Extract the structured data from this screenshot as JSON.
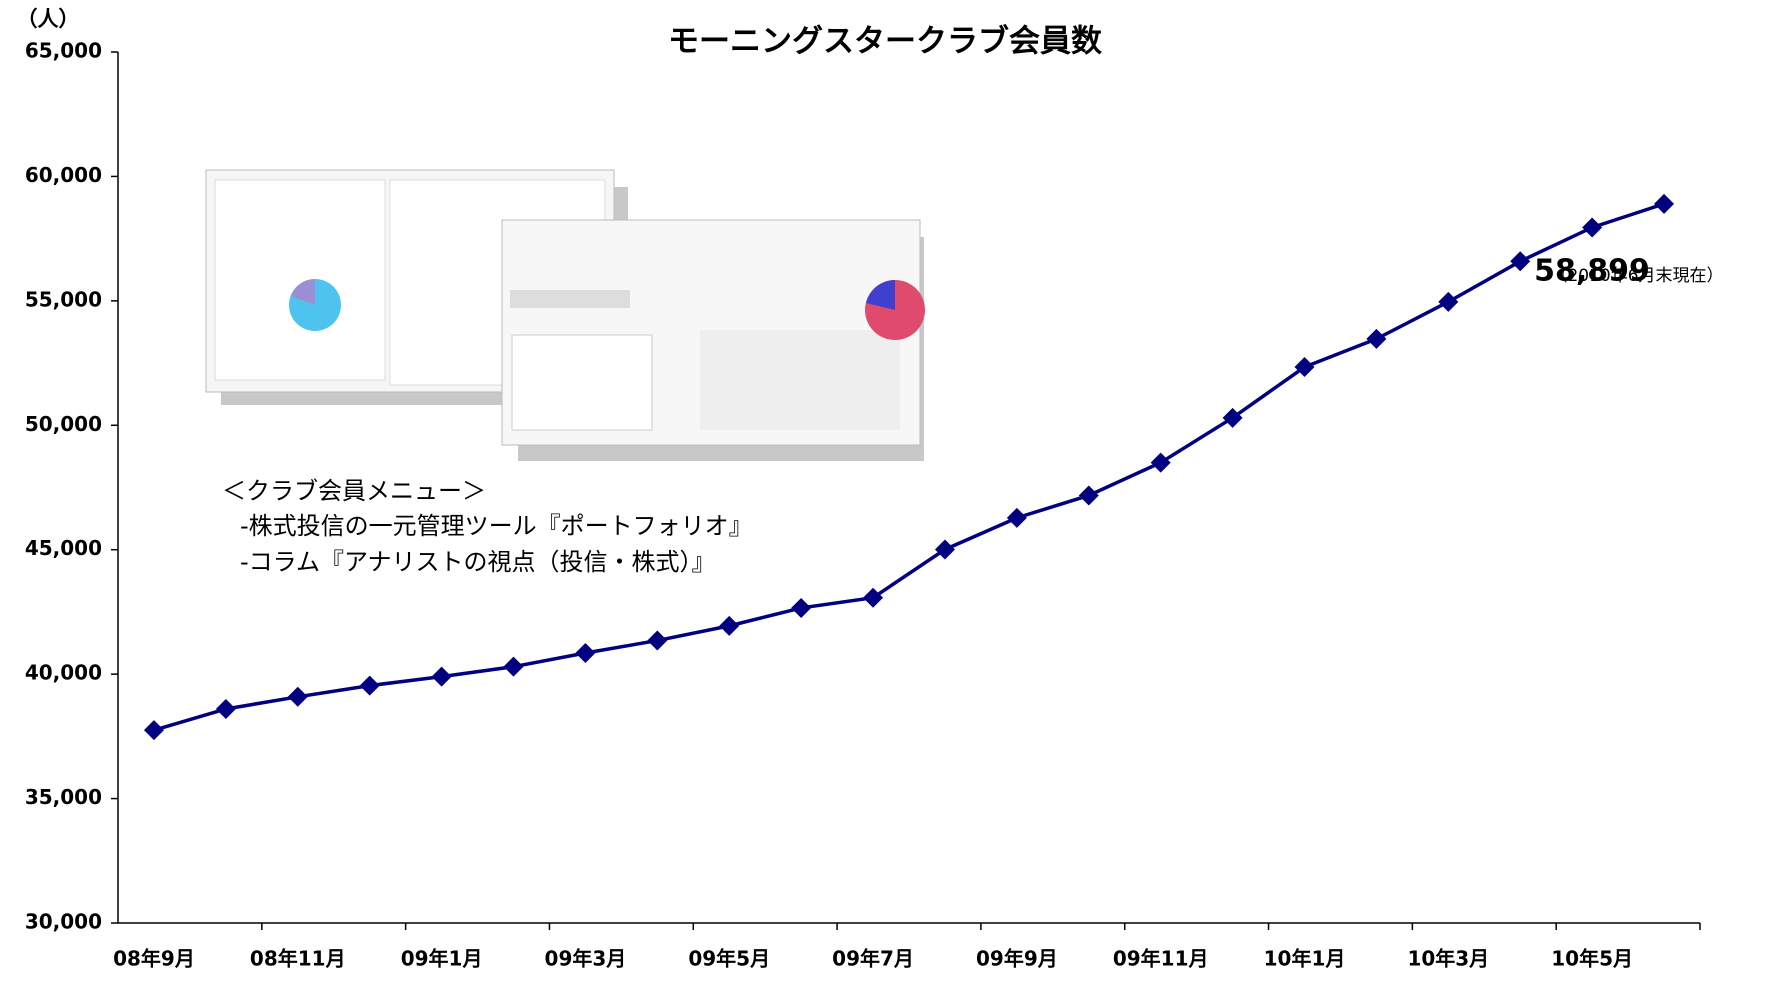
{
  "chart_data": {
    "type": "line",
    "title": "モーニングスタークラブ会員数",
    "y_unit": "（人）",
    "categories": [
      "08年9月",
      null,
      "08年11月",
      null,
      "09年1月",
      null,
      "09年3月",
      null,
      "09年5月",
      null,
      "09年7月",
      null,
      "09年9月",
      null,
      "09年11月",
      null,
      "10年1月",
      null,
      "10年3月",
      null,
      "10年5月",
      null
    ],
    "series": [
      {
        "name": "会員数",
        "color": "#000080",
        "values": [
          37750,
          38600,
          39090,
          39540,
          39900,
          40300,
          40850,
          41350,
          41940,
          42660,
          43070,
          45010,
          46280,
          47180,
          48500,
          50300,
          52340,
          53470,
          54960,
          56590,
          57950,
          58899
        ],
        "value_labels": [
          null,
          null,
          null,
          null,
          null,
          null,
          null,
          null,
          null,
          null,
          null,
          null,
          null,
          null,
          null,
          null,
          null,
          null,
          null,
          null,
          null,
          "58,899"
        ]
      }
    ],
    "annotations": [
      "（2010年6月末現在）",
      "＜クラブ会員メニュー＞",
      "-株式投信の一元管理ツール『ポートフォリオ』",
      "-コラム『アナリストの視点（投信・株式）』"
    ],
    "ylim": [
      30000,
      65000
    ],
    "yticks": [
      {
        "value": 30000,
        "label": "30,000"
      },
      {
        "value": 35000,
        "label": "35,000"
      },
      {
        "value": 40000,
        "label": "40,000"
      },
      {
        "value": 45000,
        "label": "45,000"
      },
      {
        "value": 50000,
        "label": "50,000"
      },
      {
        "value": 55000,
        "label": "55,000"
      },
      {
        "value": 60000,
        "label": "60,000"
      },
      {
        "value": 65000,
        "label": "65,000"
      }
    ],
    "grid": false
  }
}
